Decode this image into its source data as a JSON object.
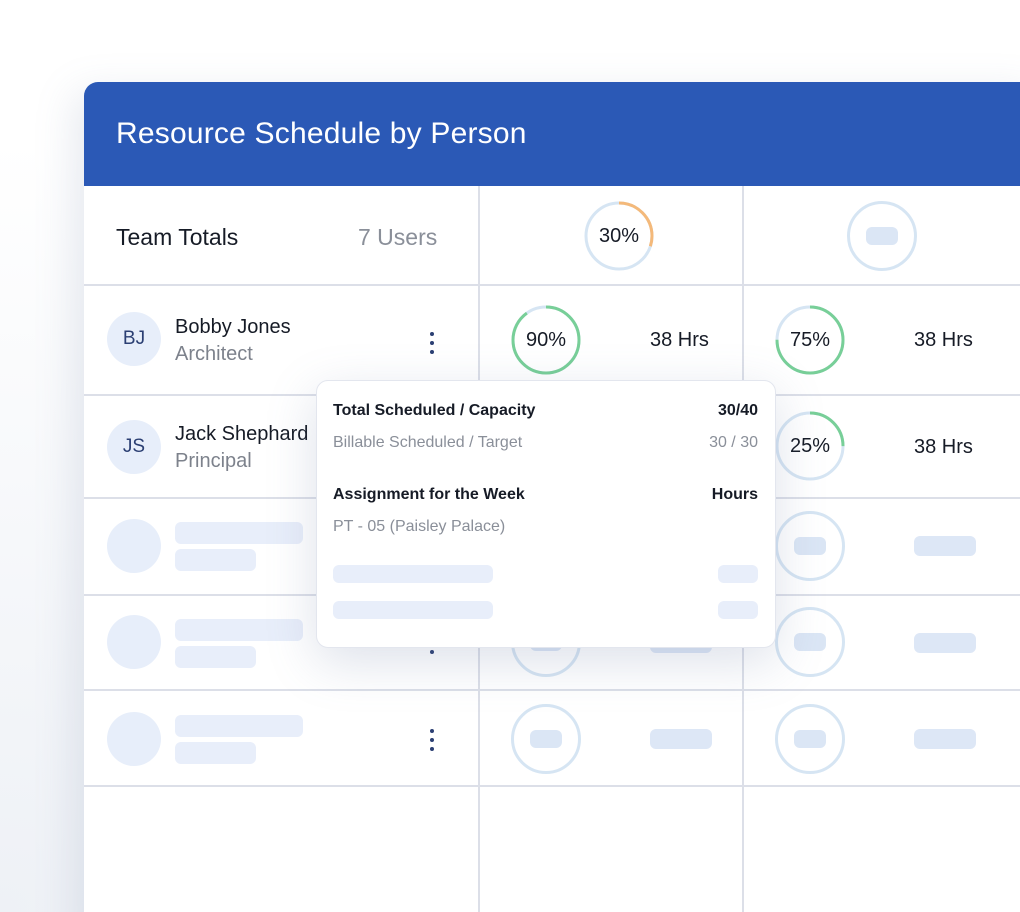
{
  "header": {
    "title": "Resource Schedule by Person"
  },
  "team_totals": {
    "label": "Team Totals",
    "users": "7 Users",
    "week1_percent": "30%",
    "week1_fraction": 0.3
  },
  "people": [
    {
      "initials": "BJ",
      "name": "Bobby Jones",
      "role": "Architect",
      "week1": {
        "percent": "90%",
        "fraction": 0.9,
        "hours": "38 Hrs"
      },
      "week2": {
        "percent": "75%",
        "fraction": 0.75,
        "hours": "38 Hrs"
      }
    },
    {
      "initials": "JS",
      "name": "Jack Shephard",
      "role": "Principal",
      "week2": {
        "percent": "25%",
        "fraction": 0.25,
        "hours": "38 Hrs"
      }
    }
  ],
  "popover": {
    "total_label": "Total Scheduled / Capacity",
    "total_value": "30/40",
    "billable_label": "Billable Scheduled / Target",
    "billable_value": "30 / 30",
    "assignment_label": "Assignment for the Week",
    "hours_label": "Hours",
    "assignment_project": "PT - 05 (Paisley Palace)"
  },
  "colors": {
    "header": "#2b59b6",
    "ring_green": "#78cf98",
    "ring_orange": "#f4b97a",
    "ring_track": "#d6e5f3"
  },
  "icons": {
    "row_menu": "kebab-menu-icon"
  }
}
